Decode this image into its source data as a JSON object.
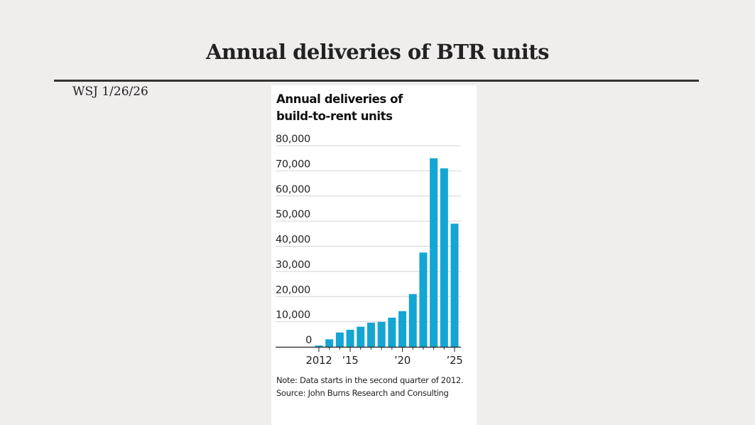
{
  "slide": {
    "title": "Annual deliveries of BTR units",
    "source_note": "WSJ  1/26/26"
  },
  "chart_data": {
    "type": "bar",
    "title_line1": "Annual deliveries of",
    "title_line2": "build-to-rent units",
    "xlabel": "",
    "ylabel": "",
    "categories": [
      "2012",
      "2013",
      "2014",
      "2015",
      "2016",
      "2017",
      "2018",
      "2019",
      "2020",
      "2021",
      "2022",
      "2023",
      "2024",
      "2025"
    ],
    "values": [
      500,
      3000,
      5700,
      6800,
      8000,
      9600,
      9900,
      11600,
      14200,
      21000,
      37500,
      75000,
      71000,
      49000
    ],
    "ylim": [
      0,
      80000
    ],
    "y_ticks": [
      {
        "value": 80000,
        "label": "80,000"
      },
      {
        "value": 70000,
        "label": "70,000"
      },
      {
        "value": 60000,
        "label": "60,000"
      },
      {
        "value": 50000,
        "label": "50,000"
      },
      {
        "value": 40000,
        "label": "40,000"
      },
      {
        "value": 30000,
        "label": "30,000"
      },
      {
        "value": 20000,
        "label": "20,000"
      },
      {
        "value": 10000,
        "label": "10,000"
      },
      {
        "value": 0,
        "label": "0"
      }
    ],
    "x_tick_labels": [
      {
        "category": "2012",
        "label": "2012"
      },
      {
        "category": "2015",
        "label": "’15"
      },
      {
        "category": "2020",
        "label": "’20"
      },
      {
        "category": "2025",
        "label": "’25"
      }
    ],
    "grid": true,
    "legend": "none",
    "bar_color": "#14a6d2",
    "note": "Note: Data starts in the second quarter of 2012.",
    "source": "Source: John Burns Research and Consulting"
  }
}
